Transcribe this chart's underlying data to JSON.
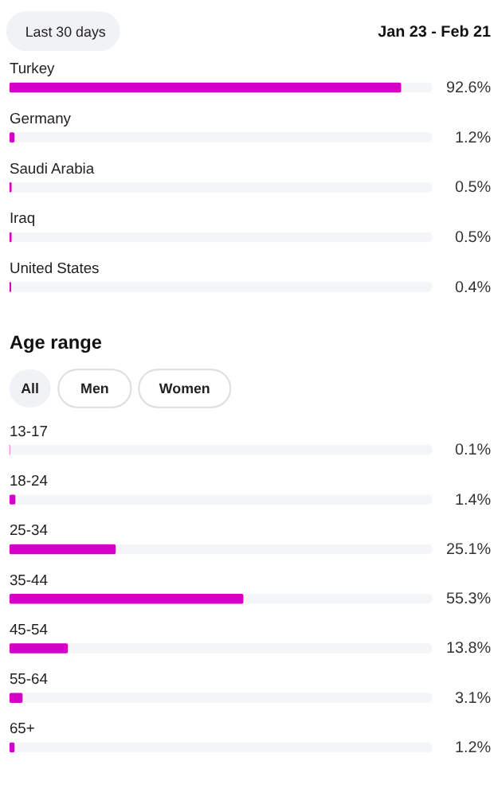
{
  "chart_data": [
    {
      "type": "bar",
      "orientation": "horizontal",
      "annotations": [
        "Last 30 days",
        "Jan 23 - Feb 21"
      ],
      "categories": [
        "Turkey",
        "Germany",
        "Saudi Arabia",
        "Iraq",
        "United States"
      ],
      "values": [
        92.6,
        1.2,
        0.5,
        0.5,
        0.4
      ],
      "color": "#d400c8",
      "value_labels": [
        "92.6%",
        "1.2%",
        "0.5%",
        "0.5%",
        "0.4%"
      ],
      "xlim": [
        0,
        100
      ],
      "tick_labels": false
    },
    {
      "type": "bar",
      "orientation": "horizontal",
      "title": "Age range",
      "annotations": [
        "All",
        "Men",
        "Women"
      ],
      "categories": [
        "13-17",
        "18-24",
        "25-34",
        "35-44",
        "45-54",
        "55-64",
        "65+"
      ],
      "values": [
        0.1,
        1.4,
        25.1,
        55.3,
        13.8,
        3.1,
        1.2
      ],
      "color": "#d400c8",
      "value_labels": [
        "0.1%",
        "1.4%",
        "25.1%",
        "55.3%",
        "13.8%",
        "3.1%",
        "1.2%"
      ],
      "xlim": [
        0,
        100
      ],
      "tick_labels": false
    }
  ]
}
